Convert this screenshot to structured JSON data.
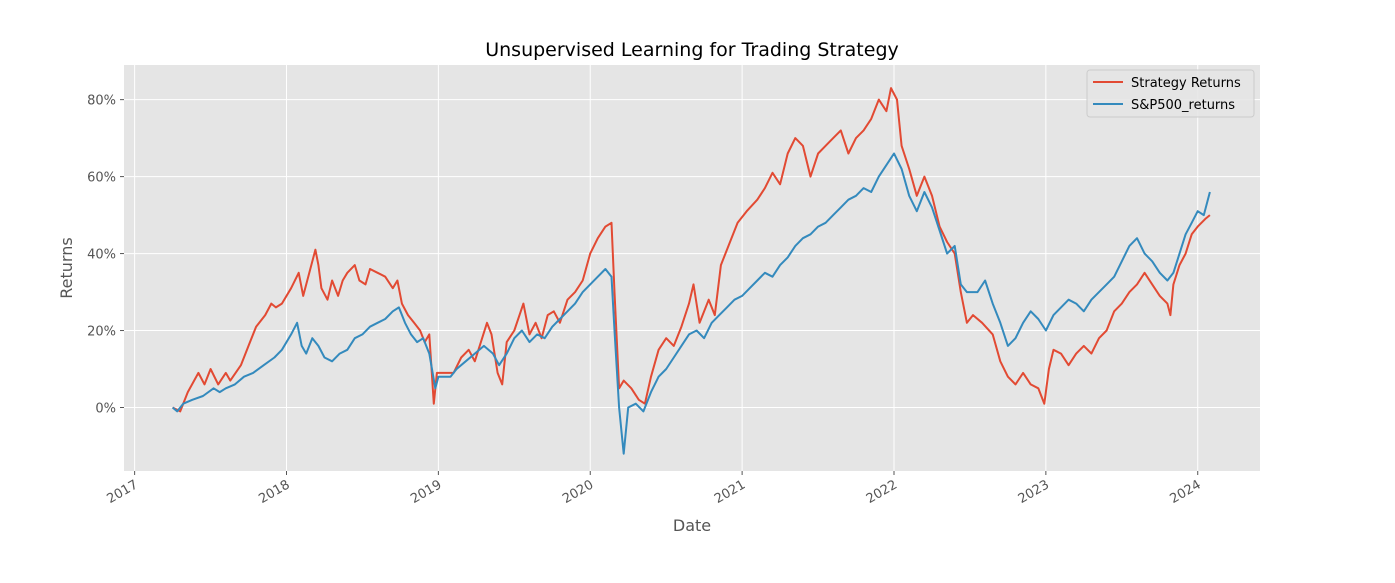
{
  "chart_data": {
    "type": "line",
    "title": "Unsupervised Learning for Trading Strategy",
    "xlabel": "Date",
    "ylabel": "Returns",
    "x_ticks": [
      "2017",
      "2018",
      "2019",
      "2020",
      "2021",
      "2022",
      "2023",
      "2024"
    ],
    "y_ticks": [
      0,
      20,
      40,
      60,
      80
    ],
    "y_tick_labels": [
      "0%",
      "20%",
      "40%",
      "60%",
      "80%"
    ],
    "xlim": [
      2016.93,
      2024.41
    ],
    "ylim": [
      -16.5,
      89
    ],
    "grid": true,
    "legend_position": "top-right",
    "series": [
      {
        "name": "Strategy Returns",
        "color": "#E24A33",
        "points": [
          [
            2017.25,
            0
          ],
          [
            2017.3,
            -1
          ],
          [
            2017.35,
            4
          ],
          [
            2017.42,
            9
          ],
          [
            2017.46,
            6
          ],
          [
            2017.5,
            10
          ],
          [
            2017.55,
            6
          ],
          [
            2017.6,
            9
          ],
          [
            2017.63,
            7
          ],
          [
            2017.7,
            11
          ],
          [
            2017.75,
            16
          ],
          [
            2017.8,
            21
          ],
          [
            2017.86,
            24
          ],
          [
            2017.9,
            27
          ],
          [
            2017.93,
            26
          ],
          [
            2017.97,
            27
          ],
          [
            2018.03,
            31
          ],
          [
            2018.08,
            35
          ],
          [
            2018.11,
            29
          ],
          [
            2018.15,
            35
          ],
          [
            2018.19,
            41
          ],
          [
            2018.21,
            37
          ],
          [
            2018.23,
            31
          ],
          [
            2018.27,
            28
          ],
          [
            2018.3,
            33
          ],
          [
            2018.34,
            29
          ],
          [
            2018.37,
            33
          ],
          [
            2018.4,
            35
          ],
          [
            2018.45,
            37
          ],
          [
            2018.48,
            33
          ],
          [
            2018.52,
            32
          ],
          [
            2018.55,
            36
          ],
          [
            2018.6,
            35
          ],
          [
            2018.65,
            34
          ],
          [
            2018.7,
            31
          ],
          [
            2018.73,
            33
          ],
          [
            2018.76,
            27
          ],
          [
            2018.8,
            24
          ],
          [
            2018.84,
            22
          ],
          [
            2018.88,
            20
          ],
          [
            2018.91,
            17
          ],
          [
            2018.94,
            19
          ],
          [
            2018.97,
            1
          ],
          [
            2018.99,
            9
          ],
          [
            2019.05,
            9
          ],
          [
            2019.1,
            9
          ],
          [
            2019.15,
            13
          ],
          [
            2019.2,
            15
          ],
          [
            2019.24,
            12
          ],
          [
            2019.28,
            17
          ],
          [
            2019.32,
            22
          ],
          [
            2019.35,
            19
          ],
          [
            2019.39,
            9
          ],
          [
            2019.42,
            6
          ],
          [
            2019.45,
            17
          ],
          [
            2019.5,
            20
          ],
          [
            2019.56,
            27
          ],
          [
            2019.6,
            19
          ],
          [
            2019.64,
            22
          ],
          [
            2019.68,
            18
          ],
          [
            2019.72,
            24
          ],
          [
            2019.76,
            25
          ],
          [
            2019.8,
            22
          ],
          [
            2019.85,
            28
          ],
          [
            2019.9,
            30
          ],
          [
            2019.95,
            33
          ],
          [
            2020.0,
            40
          ],
          [
            2020.05,
            44
          ],
          [
            2020.1,
            47
          ],
          [
            2020.14,
            48
          ],
          [
            2020.16,
            30
          ],
          [
            2020.19,
            5
          ],
          [
            2020.22,
            7
          ],
          [
            2020.27,
            5
          ],
          [
            2020.32,
            2
          ],
          [
            2020.36,
            1
          ],
          [
            2020.4,
            8
          ],
          [
            2020.45,
            15
          ],
          [
            2020.5,
            18
          ],
          [
            2020.55,
            16
          ],
          [
            2020.6,
            21
          ],
          [
            2020.65,
            27
          ],
          [
            2020.68,
            32
          ],
          [
            2020.72,
            22
          ],
          [
            2020.78,
            28
          ],
          [
            2020.82,
            24
          ],
          [
            2020.86,
            37
          ],
          [
            2020.92,
            43
          ],
          [
            2020.97,
            48
          ],
          [
            2021.03,
            51
          ],
          [
            2021.1,
            54
          ],
          [
            2021.15,
            57
          ],
          [
            2021.2,
            61
          ],
          [
            2021.25,
            58
          ],
          [
            2021.3,
            66
          ],
          [
            2021.35,
            70
          ],
          [
            2021.4,
            68
          ],
          [
            2021.45,
            60
          ],
          [
            2021.5,
            66
          ],
          [
            2021.55,
            68
          ],
          [
            2021.6,
            70
          ],
          [
            2021.65,
            72
          ],
          [
            2021.7,
            66
          ],
          [
            2021.75,
            70
          ],
          [
            2021.8,
            72
          ],
          [
            2021.85,
            75
          ],
          [
            2021.9,
            80
          ],
          [
            2021.95,
            77
          ],
          [
            2021.98,
            83
          ],
          [
            2022.02,
            80
          ],
          [
            2022.05,
            68
          ],
          [
            2022.1,
            62
          ],
          [
            2022.15,
            55
          ],
          [
            2022.2,
            60
          ],
          [
            2022.25,
            55
          ],
          [
            2022.3,
            47
          ],
          [
            2022.35,
            43
          ],
          [
            2022.4,
            40
          ],
          [
            2022.44,
            30
          ],
          [
            2022.48,
            22
          ],
          [
            2022.52,
            24
          ],
          [
            2022.58,
            22
          ],
          [
            2022.65,
            19
          ],
          [
            2022.7,
            12
          ],
          [
            2022.75,
            8
          ],
          [
            2022.8,
            6
          ],
          [
            2022.85,
            9
          ],
          [
            2022.9,
            6
          ],
          [
            2022.95,
            5
          ],
          [
            2022.99,
            1
          ],
          [
            2023.02,
            10
          ],
          [
            2023.05,
            15
          ],
          [
            2023.1,
            14
          ],
          [
            2023.15,
            11
          ],
          [
            2023.2,
            14
          ],
          [
            2023.25,
            16
          ],
          [
            2023.3,
            14
          ],
          [
            2023.35,
            18
          ],
          [
            2023.4,
            20
          ],
          [
            2023.45,
            25
          ],
          [
            2023.5,
            27
          ],
          [
            2023.55,
            30
          ],
          [
            2023.6,
            32
          ],
          [
            2023.65,
            35
          ],
          [
            2023.7,
            32
          ],
          [
            2023.75,
            29
          ],
          [
            2023.8,
            27
          ],
          [
            2023.82,
            24
          ],
          [
            2023.84,
            32
          ],
          [
            2023.88,
            37
          ],
          [
            2023.92,
            40
          ],
          [
            2023.96,
            45
          ],
          [
            2024.0,
            47
          ],
          [
            2024.05,
            49
          ],
          [
            2024.08,
            50
          ]
        ]
      },
      {
        "name": "S&P500_returns",
        "color": "#348ABD",
        "points": [
          [
            2017.25,
            0
          ],
          [
            2017.28,
            -1
          ],
          [
            2017.32,
            1
          ],
          [
            2017.38,
            2
          ],
          [
            2017.45,
            3
          ],
          [
            2017.52,
            5
          ],
          [
            2017.56,
            4
          ],
          [
            2017.6,
            5
          ],
          [
            2017.66,
            6
          ],
          [
            2017.72,
            8
          ],
          [
            2017.78,
            9
          ],
          [
            2017.85,
            11
          ],
          [
            2017.92,
            13
          ],
          [
            2017.97,
            15
          ],
          [
            2018.03,
            19
          ],
          [
            2018.07,
            22
          ],
          [
            2018.1,
            16
          ],
          [
            2018.13,
            14
          ],
          [
            2018.17,
            18
          ],
          [
            2018.21,
            16
          ],
          [
            2018.25,
            13
          ],
          [
            2018.3,
            12
          ],
          [
            2018.35,
            14
          ],
          [
            2018.4,
            15
          ],
          [
            2018.45,
            18
          ],
          [
            2018.5,
            19
          ],
          [
            2018.55,
            21
          ],
          [
            2018.6,
            22
          ],
          [
            2018.65,
            23
          ],
          [
            2018.7,
            25
          ],
          [
            2018.74,
            26
          ],
          [
            2018.78,
            22
          ],
          [
            2018.82,
            19
          ],
          [
            2018.86,
            17
          ],
          [
            2018.9,
            18
          ],
          [
            2018.94,
            14
          ],
          [
            2018.98,
            5
          ],
          [
            2019.0,
            8
          ],
          [
            2019.08,
            8
          ],
          [
            2019.12,
            10
          ],
          [
            2019.18,
            12
          ],
          [
            2019.24,
            14
          ],
          [
            2019.3,
            16
          ],
          [
            2019.36,
            14
          ],
          [
            2019.4,
            11
          ],
          [
            2019.45,
            14
          ],
          [
            2019.5,
            18
          ],
          [
            2019.55,
            20
          ],
          [
            2019.6,
            17
          ],
          [
            2019.65,
            19
          ],
          [
            2019.7,
            18
          ],
          [
            2019.75,
            21
          ],
          [
            2019.8,
            23
          ],
          [
            2019.85,
            25
          ],
          [
            2019.9,
            27
          ],
          [
            2019.95,
            30
          ],
          [
            2020.0,
            32
          ],
          [
            2020.05,
            34
          ],
          [
            2020.1,
            36
          ],
          [
            2020.14,
            34
          ],
          [
            2020.16,
            20
          ],
          [
            2020.19,
            0
          ],
          [
            2020.22,
            -12
          ],
          [
            2020.25,
            0
          ],
          [
            2020.3,
            1
          ],
          [
            2020.35,
            -1
          ],
          [
            2020.4,
            4
          ],
          [
            2020.45,
            8
          ],
          [
            2020.5,
            10
          ],
          [
            2020.55,
            13
          ],
          [
            2020.6,
            16
          ],
          [
            2020.65,
            19
          ],
          [
            2020.7,
            20
          ],
          [
            2020.75,
            18
          ],
          [
            2020.8,
            22
          ],
          [
            2020.85,
            24
          ],
          [
            2020.9,
            26
          ],
          [
            2020.95,
            28
          ],
          [
            2021.0,
            29
          ],
          [
            2021.05,
            31
          ],
          [
            2021.1,
            33
          ],
          [
            2021.15,
            35
          ],
          [
            2021.2,
            34
          ],
          [
            2021.25,
            37
          ],
          [
            2021.3,
            39
          ],
          [
            2021.35,
            42
          ],
          [
            2021.4,
            44
          ],
          [
            2021.45,
            45
          ],
          [
            2021.5,
            47
          ],
          [
            2021.55,
            48
          ],
          [
            2021.6,
            50
          ],
          [
            2021.65,
            52
          ],
          [
            2021.7,
            54
          ],
          [
            2021.75,
            55
          ],
          [
            2021.8,
            57
          ],
          [
            2021.85,
            56
          ],
          [
            2021.9,
            60
          ],
          [
            2021.95,
            63
          ],
          [
            2022.0,
            66
          ],
          [
            2022.05,
            62
          ],
          [
            2022.1,
            55
          ],
          [
            2022.15,
            51
          ],
          [
            2022.2,
            56
          ],
          [
            2022.25,
            52
          ],
          [
            2022.3,
            46
          ],
          [
            2022.35,
            40
          ],
          [
            2022.4,
            42
          ],
          [
            2022.44,
            32
          ],
          [
            2022.48,
            30
          ],
          [
            2022.55,
            30
          ],
          [
            2022.6,
            33
          ],
          [
            2022.65,
            27
          ],
          [
            2022.7,
            22
          ],
          [
            2022.75,
            16
          ],
          [
            2022.8,
            18
          ],
          [
            2022.85,
            22
          ],
          [
            2022.9,
            25
          ],
          [
            2022.95,
            23
          ],
          [
            2023.0,
            20
          ],
          [
            2023.05,
            24
          ],
          [
            2023.1,
            26
          ],
          [
            2023.15,
            28
          ],
          [
            2023.2,
            27
          ],
          [
            2023.25,
            25
          ],
          [
            2023.3,
            28
          ],
          [
            2023.35,
            30
          ],
          [
            2023.4,
            32
          ],
          [
            2023.45,
            34
          ],
          [
            2023.5,
            38
          ],
          [
            2023.55,
            42
          ],
          [
            2023.6,
            44
          ],
          [
            2023.65,
            40
          ],
          [
            2023.7,
            38
          ],
          [
            2023.75,
            35
          ],
          [
            2023.8,
            33
          ],
          [
            2023.84,
            35
          ],
          [
            2023.88,
            40
          ],
          [
            2023.92,
            45
          ],
          [
            2023.96,
            48
          ],
          [
            2024.0,
            51
          ],
          [
            2024.04,
            50
          ],
          [
            2024.08,
            56
          ]
        ]
      }
    ]
  }
}
